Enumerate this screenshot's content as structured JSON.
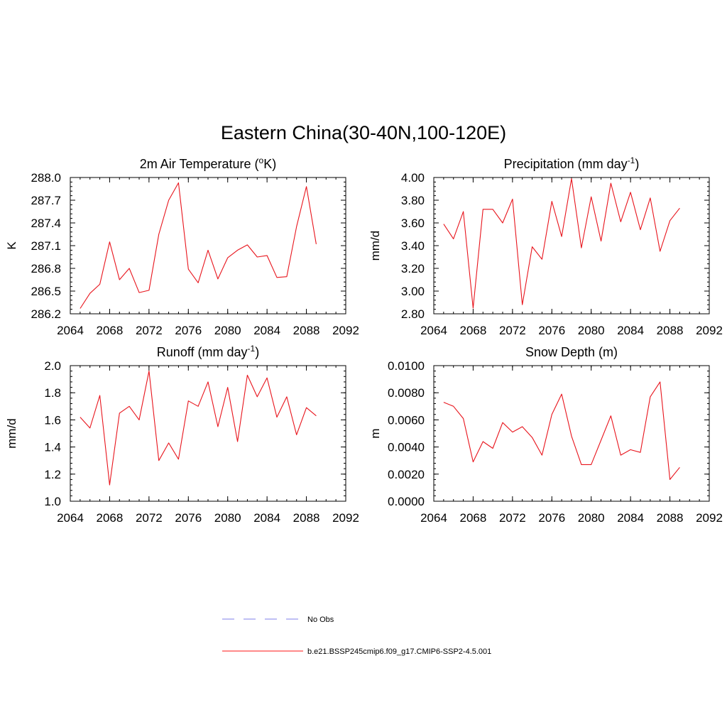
{
  "figure": {
    "title": "Eastern China(30-40N,100-120E)"
  },
  "legend": {
    "entries": [
      {
        "label": "No Obs",
        "color": "#9999ee",
        "dash": true
      },
      {
        "label": "b.e21.BSSP245cmip6.f09_g17.CMIP6-SSP2-4.5.001",
        "color": "#ff4444",
        "dash": false
      }
    ]
  },
  "chart_data": [
    {
      "type": "line",
      "title_main": "2m Air Temperature (",
      "title_sup": "o",
      "title_end": "K)",
      "ylabel": "K",
      "xlim": [
        2064,
        2092
      ],
      "ylim": [
        286.2,
        288.0
      ],
      "xticks": [
        "2064",
        "2068",
        "2072",
        "2076",
        "2080",
        "2084",
        "2088",
        "2092"
      ],
      "yticks": [
        "286.2",
        "286.5",
        "286.8",
        "287.1",
        "287.4",
        "287.7",
        "288.0"
      ],
      "color": "#e8141c",
      "x": [
        2065,
        2066,
        2067,
        2068,
        2069,
        2070,
        2071,
        2072,
        2073,
        2074,
        2075,
        2076,
        2077,
        2078,
        2079,
        2080,
        2081,
        2082,
        2083,
        2084,
        2085,
        2086,
        2087,
        2088,
        2089
      ],
      "values": [
        286.27,
        286.47,
        286.59,
        287.15,
        286.65,
        286.8,
        286.48,
        286.51,
        287.25,
        287.7,
        287.93,
        286.79,
        286.61,
        287.04,
        286.66,
        286.94,
        287.04,
        287.11,
        286.95,
        286.97,
        286.68,
        286.69,
        287.35,
        287.88,
        287.12
      ]
    },
    {
      "type": "line",
      "title_main": "Precipitation (mm day",
      "title_sup": "-1",
      "title_end": ")",
      "ylabel": "mm/d",
      "xlim": [
        2064,
        2092
      ],
      "ylim": [
        2.8,
        4.0
      ],
      "xticks": [
        "2064",
        "2068",
        "2072",
        "2076",
        "2080",
        "2084",
        "2088",
        "2092"
      ],
      "yticks": [
        "2.80",
        "3.00",
        "3.20",
        "3.40",
        "3.60",
        "3.80",
        "4.00"
      ],
      "color": "#e8141c",
      "x": [
        2065,
        2066,
        2067,
        2068,
        2069,
        2070,
        2071,
        2072,
        2073,
        2074,
        2075,
        2076,
        2077,
        2078,
        2079,
        2080,
        2081,
        2082,
        2083,
        2084,
        2085,
        2086,
        2087,
        2088,
        2089
      ],
      "values": [
        3.59,
        3.46,
        3.7,
        2.85,
        3.72,
        3.72,
        3.6,
        3.81,
        2.88,
        3.39,
        3.28,
        3.79,
        3.48,
        3.99,
        3.38,
        3.83,
        3.44,
        3.95,
        3.61,
        3.87,
        3.54,
        3.82,
        3.35,
        3.62,
        3.73
      ]
    },
    {
      "type": "line",
      "title_main": "Runoff (mm day",
      "title_sup": "-1",
      "title_end": ")",
      "ylabel": "mm/d",
      "xlim": [
        2064,
        2092
      ],
      "ylim": [
        1.0,
        2.0
      ],
      "xticks": [
        "2064",
        "2068",
        "2072",
        "2076",
        "2080",
        "2084",
        "2088",
        "2092"
      ],
      "yticks": [
        "1.0",
        "1.2",
        "1.4",
        "1.6",
        "1.8",
        "2.0"
      ],
      "color": "#e8141c",
      "x": [
        2065,
        2066,
        2067,
        2068,
        2069,
        2070,
        2071,
        2072,
        2073,
        2074,
        2075,
        2076,
        2077,
        2078,
        2079,
        2080,
        2081,
        2082,
        2083,
        2084,
        2085,
        2086,
        2087,
        2088,
        2089
      ],
      "values": [
        1.62,
        1.54,
        1.78,
        1.12,
        1.65,
        1.7,
        1.6,
        1.96,
        1.3,
        1.43,
        1.31,
        1.74,
        1.7,
        1.88,
        1.55,
        1.84,
        1.44,
        1.93,
        1.77,
        1.91,
        1.62,
        1.77,
        1.49,
        1.69,
        1.63
      ]
    },
    {
      "type": "line",
      "title_main": "Snow Depth (m)",
      "title_sup": "",
      "title_end": "",
      "ylabel": "m",
      "xlim": [
        2064,
        2092
      ],
      "ylim": [
        0.0,
        0.01
      ],
      "xticks": [
        "2064",
        "2068",
        "2072",
        "2076",
        "2080",
        "2084",
        "2088",
        "2092"
      ],
      "yticks": [
        "0.0000",
        "0.0020",
        "0.0040",
        "0.0060",
        "0.0080",
        "0.0100"
      ],
      "color": "#e8141c",
      "x": [
        2065,
        2066,
        2067,
        2068,
        2069,
        2070,
        2071,
        2072,
        2073,
        2074,
        2075,
        2076,
        2077,
        2078,
        2079,
        2080,
        2081,
        2082,
        2083,
        2084,
        2085,
        2086,
        2087,
        2088,
        2089
      ],
      "values": [
        0.0073,
        0.007,
        0.0061,
        0.0029,
        0.0044,
        0.0039,
        0.0058,
        0.0051,
        0.0055,
        0.0047,
        0.0034,
        0.0064,
        0.0079,
        0.0048,
        0.0027,
        0.0027,
        0.0045,
        0.0063,
        0.0034,
        0.0038,
        0.0036,
        0.0077,
        0.0088,
        0.0016,
        0.0025
      ]
    }
  ]
}
